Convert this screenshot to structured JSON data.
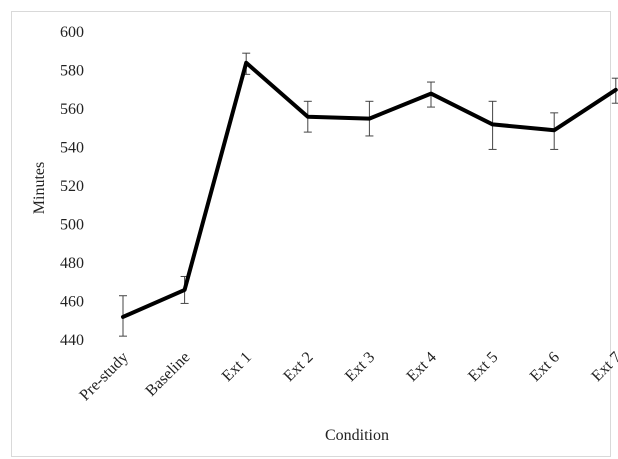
{
  "chart_data": {
    "type": "line",
    "title": "",
    "xlabel": "Condition",
    "ylabel": "Minutes",
    "ylim": [
      440,
      600
    ],
    "yticks": [
      440,
      460,
      480,
      500,
      520,
      540,
      560,
      580,
      600
    ],
    "categories": [
      "Pre-study",
      "Baseline",
      "Ext 1",
      "Ext 2",
      "Ext 3",
      "Ext 4",
      "Ext 5",
      "Ext 6",
      "Ext 7"
    ],
    "series": [
      {
        "values": [
          452,
          466,
          584,
          556,
          555,
          568,
          552,
          549,
          570
        ],
        "error_low": [
          442,
          459,
          578,
          548,
          546,
          561,
          539,
          539,
          563
        ],
        "error_high": [
          463,
          473,
          589,
          564,
          564,
          574,
          564,
          558,
          576
        ],
        "color": "#000000"
      }
    ],
    "grid": false,
    "legend": "none"
  }
}
